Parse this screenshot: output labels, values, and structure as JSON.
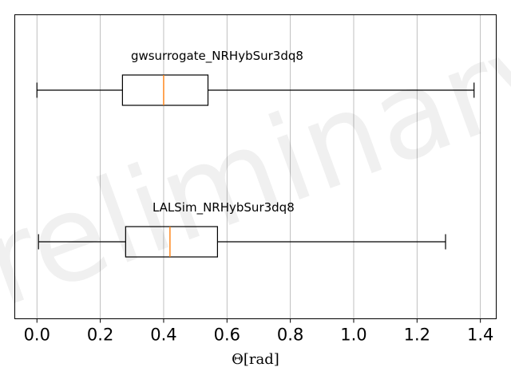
{
  "chart_data": {
    "type": "boxplot",
    "orientation": "horizontal",
    "xlabel": "Θ[rad]",
    "xlim": [
      -0.07,
      1.45
    ],
    "xticks": [
      0.0,
      0.2,
      0.4,
      0.6,
      0.8,
      1.0,
      1.2,
      1.4
    ],
    "xtick_labels": [
      "0.0",
      "0.2",
      "0.4",
      "0.6",
      "0.8",
      "1.0",
      "1.2",
      "1.4"
    ],
    "grid_x": true,
    "watermark": "Preliminary",
    "series": [
      {
        "name": "gwsurrogate_NRHybSur3dq8",
        "whisker_low": 0.0,
        "q1": 0.27,
        "median": 0.4,
        "q3": 0.54,
        "whisker_high": 1.38
      },
      {
        "name": "LALSim_NRHybSur3dq8",
        "whisker_low": 0.005,
        "q1": 0.28,
        "median": 0.42,
        "q3": 0.57,
        "whisker_high": 1.29
      }
    ],
    "colors": {
      "box": "#000000",
      "median": "#ff7f0e",
      "grid": "#b0b0b0"
    }
  }
}
